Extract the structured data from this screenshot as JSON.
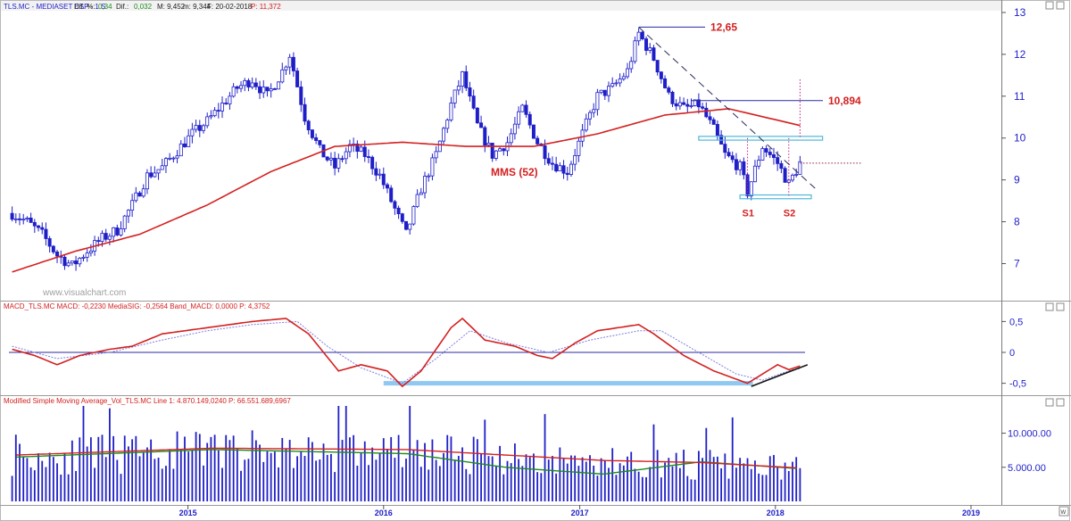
{
  "window": {
    "price_header": {
      "symbol": "TLS.MC - MEDIASET ESP - 1 S",
      "dif_pct_label": "Dif. %:",
      "dif_pct": "0,34",
      "dif_label": "Dif.:",
      "dif": "0,032",
      "max": "M: 9,452",
      "min": "m: 9,344",
      "date": "F: 20-02-2018",
      "last": "P: 11,372"
    },
    "macd_header": "MACD_TLS.MC  MACD: -0,2230  MediaSIG: -0,2564  Band_MACD: 0,0000  P: 4,3752",
    "vol_header": "Modified Simple Moving Average_Vol_TLS.MC  Line 1: 4.870.149,0240  P: 66.551.689,6967",
    "watermark": "www.visualchart.com",
    "x_axis_years": [
      "2015",
      "2016",
      "2017",
      "2018",
      "2019"
    ],
    "corner_label": "W"
  },
  "colors": {
    "candle": "#1f1fc8",
    "ma": "#d42020",
    "annotation": "#d42020",
    "hline": "#2a2aa0",
    "support": "#4fb8d8",
    "vol_ma2": "#1f8a1f",
    "signal": "#7f7fe0",
    "macd_band": "#8fc8f0",
    "trend": "#141414"
  },
  "chart_data": [
    {
      "id": "price",
      "type": "candlestick",
      "title": "TLS.MC - MEDIASET ESP - 1 S",
      "ylim": [
        6.2,
        13.0
      ],
      "yticks": [
        7,
        8,
        9,
        10,
        11,
        12,
        13
      ],
      "ytick_labels": [
        "7",
        "8",
        "9",
        "10",
        "11",
        "12",
        "13"
      ],
      "x_range": [
        "2014-02",
        "2019-03"
      ],
      "grid": false,
      "ma_label": "MMS (52)",
      "close_series": [
        [
          "2014-02-07",
          8.2
        ],
        [
          "2014-03-07",
          8.0
        ],
        [
          "2014-04-04",
          7.7
        ],
        [
          "2014-05-02",
          7.2
        ],
        [
          "2014-05-30",
          6.95
        ],
        [
          "2014-06-27",
          7.3
        ],
        [
          "2014-07-25",
          7.6
        ],
        [
          "2014-08-22",
          7.8
        ],
        [
          "2014-09-19",
          8.4
        ],
        [
          "2014-10-17",
          9.1
        ],
        [
          "2014-11-14",
          9.3
        ],
        [
          "2014-12-12",
          9.7
        ],
        [
          "2015-01-09",
          10.1
        ],
        [
          "2015-02-06",
          10.4
        ],
        [
          "2015-03-06",
          10.8
        ],
        [
          "2015-04-03",
          11.2
        ],
        [
          "2015-05-01",
          11.4
        ],
        [
          "2015-05-29",
          11.0
        ],
        [
          "2015-06-26",
          11.6
        ],
        [
          "2015-07-10",
          12.0
        ],
        [
          "2015-08-07",
          10.5
        ],
        [
          "2015-09-04",
          9.7
        ],
        [
          "2015-10-02",
          9.3
        ],
        [
          "2015-10-30",
          9.8
        ],
        [
          "2015-11-27",
          9.6
        ],
        [
          "2015-12-25",
          9.1
        ],
        [
          "2016-01-22",
          8.3
        ],
        [
          "2016-02-12",
          7.7
        ],
        [
          "2016-03-11",
          8.8
        ],
        [
          "2016-04-08",
          9.6
        ],
        [
          "2016-05-06",
          10.8
        ],
        [
          "2016-05-27",
          11.5
        ],
        [
          "2016-06-24",
          10.3
        ],
        [
          "2016-07-22",
          9.6
        ],
        [
          "2016-08-19",
          9.9
        ],
        [
          "2016-09-16",
          10.7
        ],
        [
          "2016-10-14",
          9.9
        ],
        [
          "2016-11-11",
          9.4
        ],
        [
          "2016-12-09",
          9.2
        ],
        [
          "2017-01-06",
          10.1
        ],
        [
          "2017-02-03",
          11.0
        ],
        [
          "2017-03-03",
          11.2
        ],
        [
          "2017-03-31",
          11.6
        ],
        [
          "2017-04-21",
          12.5
        ],
        [
          "2017-05-19",
          11.9
        ],
        [
          "2017-06-16",
          11.0
        ],
        [
          "2017-07-14",
          10.7
        ],
        [
          "2017-08-11",
          10.8
        ],
        [
          "2017-09-08",
          10.2
        ],
        [
          "2017-09-29",
          9.6
        ],
        [
          "2017-10-27",
          9.3
        ],
        [
          "2017-11-10",
          8.7
        ],
        [
          "2017-12-08",
          9.8
        ],
        [
          "2018-01-05",
          9.4
        ],
        [
          "2018-01-26",
          8.9
        ],
        [
          "2018-02-16",
          9.4
        ]
      ],
      "ma_series": [
        [
          "2014-02-07",
          6.8
        ],
        [
          "2014-06-06",
          7.3
        ],
        [
          "2014-10-03",
          7.7
        ],
        [
          "2015-02-06",
          8.4
        ],
        [
          "2015-06-05",
          9.2
        ],
        [
          "2015-10-02",
          9.8
        ],
        [
          "2016-02-05",
          9.9
        ],
        [
          "2016-06-03",
          9.8
        ],
        [
          "2016-10-07",
          9.8
        ],
        [
          "2017-02-03",
          10.1
        ],
        [
          "2017-06-09",
          10.55
        ],
        [
          "2017-10-06",
          10.7
        ],
        [
          "2018-02-16",
          10.3
        ]
      ],
      "annotations": [
        {
          "label": "12,65",
          "value": 12.65,
          "date": "2017-04-21"
        },
        {
          "label": "10,894",
          "value": 10.894
        },
        {
          "label": "S1",
          "value": 8.6,
          "date": "2017-11-10"
        },
        {
          "label": "S2",
          "value": 8.6,
          "date": "2018-01-26"
        }
      ],
      "resistance_band": [
        9.95,
        10.04
      ],
      "support_band": [
        8.55,
        8.64
      ],
      "trendline": [
        [
          "2017-04-21",
          12.65
        ],
        [
          "2018-03-16",
          8.8
        ]
      ],
      "last_close": 9.4
    },
    {
      "id": "macd",
      "type": "line",
      "title": "MACD_TLS.MC",
      "ylim": [
        -0.65,
        0.65
      ],
      "yticks": [
        0.5,
        0,
        -0.5
      ],
      "ytick_labels": [
        "0,5",
        "0",
        "-0,5"
      ],
      "series": [
        {
          "name": "MACD",
          "values": [
            [
              "2014-02-07",
              0.05
            ],
            [
              "2014-03-21",
              -0.05
            ],
            [
              "2014-05-02",
              -0.2
            ],
            [
              "2014-06-13",
              -0.05
            ],
            [
              "2014-08-08",
              0.05
            ],
            [
              "2014-09-19",
              0.1
            ],
            [
              "2014-11-14",
              0.3
            ],
            [
              "2015-02-06",
              0.4
            ],
            [
              "2015-05-01",
              0.5
            ],
            [
              "2015-07-03",
              0.55
            ],
            [
              "2015-08-14",
              0.3
            ],
            [
              "2015-10-09",
              -0.3
            ],
            [
              "2015-11-20",
              -0.2
            ],
            [
              "2016-01-08",
              -0.3
            ],
            [
              "2016-02-05",
              -0.55
            ],
            [
              "2016-03-11",
              -0.3
            ],
            [
              "2016-05-06",
              0.4
            ],
            [
              "2016-05-27",
              0.55
            ],
            [
              "2016-07-08",
              0.2
            ],
            [
              "2016-09-02",
              0.1
            ],
            [
              "2016-10-14",
              -0.05
            ],
            [
              "2016-11-11",
              -0.1
            ],
            [
              "2016-12-23",
              0.15
            ],
            [
              "2017-02-03",
              0.35
            ],
            [
              "2017-04-21",
              0.45
            ],
            [
              "2017-05-19",
              0.3
            ],
            [
              "2017-07-14",
              -0.05
            ],
            [
              "2017-09-08",
              -0.3
            ],
            [
              "2017-11-10",
              -0.5
            ],
            [
              "2017-12-08",
              -0.35
            ],
            [
              "2018-01-05",
              -0.2
            ],
            [
              "2018-01-26",
              -0.28
            ],
            [
              "2018-02-16",
              -0.22
            ]
          ]
        },
        {
          "name": "MediaSIG",
          "values": [
            [
              "2014-02-07",
              0.1
            ],
            [
              "2014-05-02",
              -0.1
            ],
            [
              "2014-08-08",
              0.0
            ],
            [
              "2014-11-14",
              0.2
            ],
            [
              "2015-02-06",
              0.35
            ],
            [
              "2015-05-01",
              0.45
            ],
            [
              "2015-07-24",
              0.5
            ],
            [
              "2015-09-18",
              0.1
            ],
            [
              "2015-11-20",
              -0.25
            ],
            [
              "2016-02-05",
              -0.5
            ],
            [
              "2016-04-08",
              -0.1
            ],
            [
              "2016-06-10",
              0.35
            ],
            [
              "2016-08-19",
              0.15
            ],
            [
              "2016-11-04",
              0.0
            ],
            [
              "2017-01-20",
              0.2
            ],
            [
              "2017-04-21",
              0.35
            ],
            [
              "2017-06-02",
              0.35
            ],
            [
              "2017-08-11",
              0.0
            ],
            [
              "2017-10-20",
              -0.35
            ],
            [
              "2017-12-08",
              -0.45
            ],
            [
              "2018-01-26",
              -0.3
            ],
            [
              "2018-02-16",
              -0.26
            ]
          ]
        }
      ],
      "band": {
        "value": -0.5,
        "from": "2016-01-01",
        "to": "2017-11-20"
      },
      "zero_line": 0,
      "trendline": [
        [
          "2017-11-17",
          -0.55
        ],
        [
          "2018-03-02",
          -0.2
        ]
      ]
    },
    {
      "id": "volume",
      "type": "bar",
      "title": "Modified Simple Moving Average_Vol_TLS.MC",
      "ylim": [
        0,
        14000000
      ],
      "yticks": [
        5000000,
        10000000
      ],
      "ytick_labels": [
        "5.000.00",
        "10.000.00"
      ],
      "series": [
        {
          "name": "Vol_TLS.MC",
          "values": [
            [
              "2014-02",
              7000000
            ],
            [
              "2014-04",
              9000000
            ],
            [
              "2014-06",
              14000000
            ],
            [
              "2014-08",
              8000000
            ],
            [
              "2014-10",
              10000000
            ],
            [
              "2014-12",
              9000000
            ],
            [
              "2015-02",
              13500000
            ],
            [
              "2015-04",
              8000000
            ],
            [
              "2015-06",
              10500000
            ],
            [
              "2015-08",
              9000000
            ],
            [
              "2015-10",
              8500000
            ],
            [
              "2015-12",
              9500000
            ],
            [
              "2016-02",
              13000000
            ],
            [
              "2016-04",
              9000000
            ],
            [
              "2016-06",
              8000000
            ],
            [
              "2016-08",
              6500000
            ],
            [
              "2016-10",
              6000000
            ],
            [
              "2016-12",
              7500000
            ],
            [
              "2017-02",
              5500000
            ],
            [
              "2017-04",
              8500000
            ],
            [
              "2017-06",
              6000000
            ],
            [
              "2017-08",
              7500000
            ],
            [
              "2017-10",
              7000000
            ],
            [
              "2017-12",
              6000000
            ],
            [
              "2018-02",
              4500000
            ]
          ]
        },
        {
          "name": "Line 1",
          "values": [
            [
              "2014-02",
              6800000
            ],
            [
              "2015-02",
              7800000
            ],
            [
              "2016-02",
              7600000
            ],
            [
              "2016-08",
              6800000
            ],
            [
              "2017-02",
              6000000
            ],
            [
              "2017-08",
              5700000
            ],
            [
              "2018-02",
              4900000
            ]
          ]
        },
        {
          "values": [
            [
              "2014-02",
              6500000
            ],
            [
              "2015-02",
              7600000
            ],
            [
              "2016-02",
              7000000
            ],
            [
              "2016-08",
              5000000
            ],
            [
              "2017-02",
              4000000
            ],
            [
              "2017-08",
              5800000
            ],
            [
              "2018-02",
              4800000
            ]
          ]
        }
      ]
    }
  ]
}
